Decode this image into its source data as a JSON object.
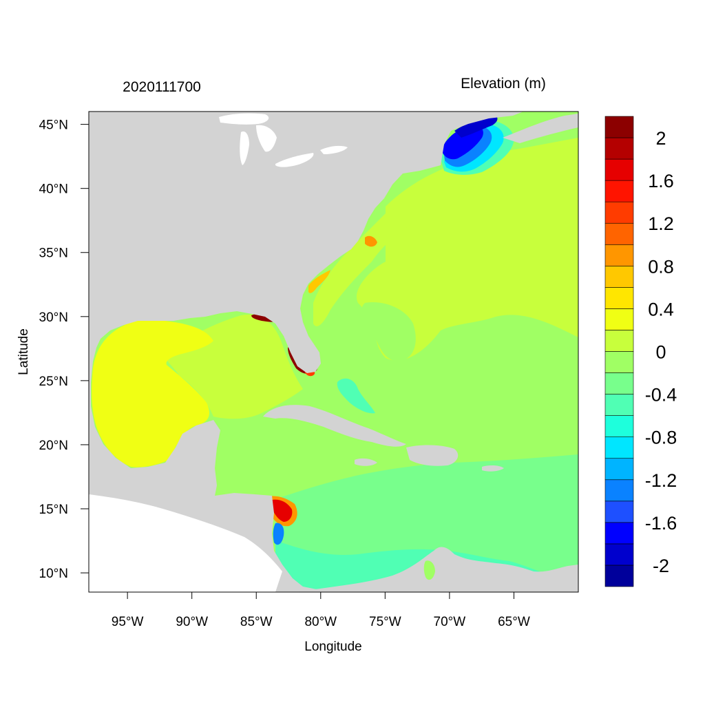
{
  "map": {
    "date_label": "2020111700",
    "variable_label": "Elevation (m)",
    "x_axis_label": "Longitude",
    "y_axis_label": "Latitude",
    "lon_ticks": [
      {
        "value": -95,
        "label": "95°W"
      },
      {
        "value": -90,
        "label": "90°W"
      },
      {
        "value": -85,
        "label": "85°W"
      },
      {
        "value": -80,
        "label": "80°W"
      },
      {
        "value": -75,
        "label": "75°W"
      },
      {
        "value": -70,
        "label": "70°W"
      },
      {
        "value": -65,
        "label": "65°W"
      }
    ],
    "lat_ticks": [
      {
        "value": 45,
        "label": "45°N"
      },
      {
        "value": 40,
        "label": "40°N"
      },
      {
        "value": 35,
        "label": "35°N"
      },
      {
        "value": 30,
        "label": "30°N"
      },
      {
        "value": 25,
        "label": "25°N"
      },
      {
        "value": 20,
        "label": "20°N"
      },
      {
        "value": 15,
        "label": "15°N"
      },
      {
        "value": 10,
        "label": "10°N"
      }
    ],
    "lon_range": [
      -98,
      -60
    ],
    "lat_range": [
      8.5,
      46
    ],
    "land_color": "#d3d3d3",
    "colorbar": {
      "colors": [
        "#00009b",
        "#0000cd",
        "#0000ff",
        "#1e50ff",
        "#0a82ff",
        "#00b4ff",
        "#00e6ff",
        "#1effdc",
        "#50ffb4",
        "#78ff8c",
        "#a0ff64",
        "#c8ff3c",
        "#f0ff14",
        "#ffe600",
        "#ffc800",
        "#ff9600",
        "#ff6400",
        "#ff3c00",
        "#ff1400",
        "#e60000",
        "#b40000",
        "#8c0000"
      ],
      "labels": [
        {
          "value": 2,
          "label": "2"
        },
        {
          "value": 1.6,
          "label": "1.6"
        },
        {
          "value": 1.2,
          "label": "1.2"
        },
        {
          "value": 0.8,
          "label": "0.8"
        },
        {
          "value": 0.4,
          "label": "0.4"
        },
        {
          "value": 0,
          "label": "0"
        },
        {
          "value": -0.4,
          "label": "-0.4"
        },
        {
          "value": -0.8,
          "label": "-0.8"
        },
        {
          "value": -1.2,
          "label": "-1.2"
        },
        {
          "value": -1.6,
          "label": "-1.6"
        },
        {
          "value": -2,
          "label": "-2"
        }
      ],
      "min": -2.2,
      "max": 2.2
    }
  }
}
